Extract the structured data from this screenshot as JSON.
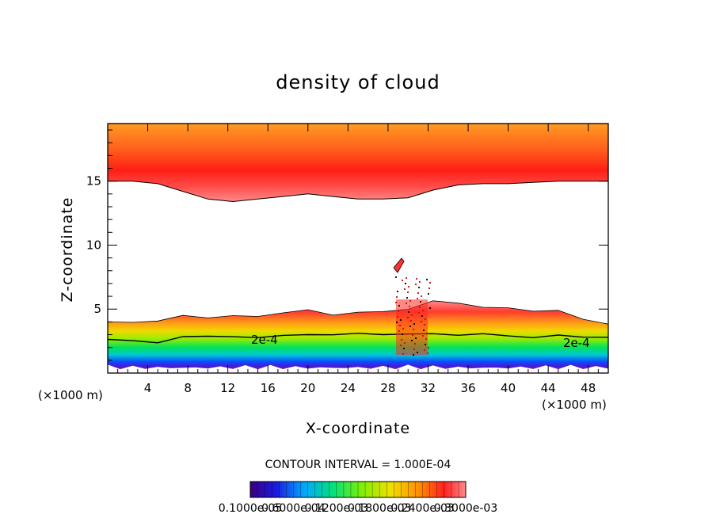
{
  "chart_data": {
    "type": "heatmap",
    "title": "density of cloud",
    "xlabel": "X-coordinate",
    "ylabel": "Z-coordinate",
    "x_unit": "(×1000 m)",
    "x_unit_right": "(×1000 m)",
    "xlim": [
      0,
      50
    ],
    "ylim": [
      0,
      19.5
    ],
    "x_ticks": [
      "4",
      "8",
      "12",
      "16",
      "20",
      "24",
      "28",
      "32",
      "36",
      "40",
      "44",
      "48"
    ],
    "y_ticks": [
      "5",
      "10",
      "15"
    ],
    "contour_interval_text": "CONTOUR INTERVAL = 1.000E-04",
    "contour_labels": [
      "2e-4",
      "2e-4"
    ],
    "colorbar": {
      "min_label": "0.1000e-05",
      "max_label": "0.3000e-03",
      "tick_labels": [
        "0.1000e-05",
        "0.6000e-04",
        "0.1200e-03",
        "0.1800e-03",
        "0.2400e-03",
        "0.3000e-03"
      ],
      "levels": [
        1e-06,
        6e-05,
        0.00012,
        0.00018,
        0.00024,
        0.0003
      ]
    },
    "upper_layer": {
      "bottom_z": [
        15,
        15,
        14.8,
        14.2,
        13.6,
        13.4,
        13.6,
        13.8,
        14.0,
        13.8,
        13.6,
        13.6,
        13.7,
        14.3,
        14.7,
        14.8,
        14.8,
        14.9,
        15,
        15,
        15
      ],
      "top_z": 19.5
    },
    "lower_layer": {
      "top_z": [
        4.0,
        4.0,
        3.9,
        4.6,
        4.4,
        4.4,
        4.5,
        4.6,
        4.9,
        4.7,
        4.7,
        4.8,
        5.0,
        5.5,
        5.6,
        5.2,
        5.0,
        4.9,
        4.8,
        4.2,
        4.0
      ],
      "contour_2e4_z": [
        2.7,
        2.6,
        2.3,
        2.9,
        2.8,
        2.8,
        2.9,
        2.9,
        3.0,
        3.0,
        3.0,
        3.1,
        3.1,
        3.0,
        3.0,
        3.0,
        2.9,
        2.9,
        2.9,
        2.8,
        2.8
      ],
      "bottom_z": 0.3
    }
  }
}
